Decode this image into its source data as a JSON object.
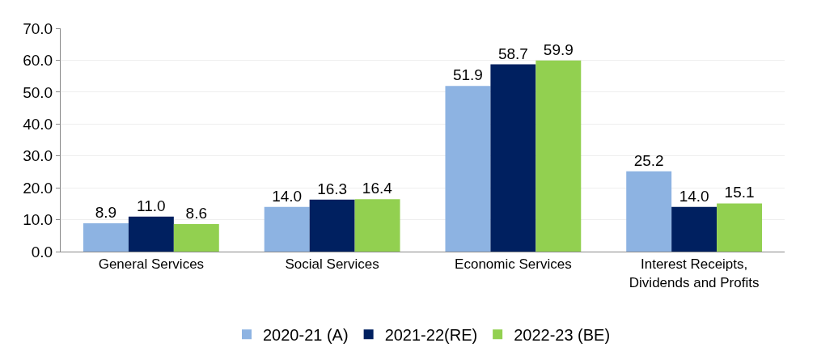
{
  "chart_data": {
    "type": "bar",
    "categories": [
      "General Services",
      "Social Services",
      "Economic Services",
      "Interest Receipts, Dividends and Profits"
    ],
    "series": [
      {
        "name": "2020-21 (A)",
        "color": "#8db3e2",
        "values": [
          8.9,
          14.0,
          51.9,
          25.2
        ],
        "value_labels": [
          "8.9",
          "14.0",
          "51.9",
          "25.2"
        ]
      },
      {
        "name": "2021-22(RE)",
        "color": "#002060",
        "values": [
          11.0,
          16.3,
          58.7,
          14.0
        ],
        "value_labels": [
          "11.0",
          "16.3",
          "58.7",
          "14.0"
        ]
      },
      {
        "name": "2022-23 (BE)",
        "color": "#92d050",
        "values": [
          8.6,
          16.4,
          59.9,
          15.1
        ],
        "value_labels": [
          "8.6",
          "16.4",
          "59.9",
          "15.1"
        ]
      }
    ],
    "ylim": [
      0,
      70
    ],
    "yticks": [
      {
        "value": 0,
        "label": "0.0"
      },
      {
        "value": 10,
        "label": "10.0"
      },
      {
        "value": 20,
        "label": "20.0"
      },
      {
        "value": 30,
        "label": "30.0"
      },
      {
        "value": 40,
        "label": "40.0"
      },
      {
        "value": 50,
        "label": "50.0"
      },
      {
        "value": 60,
        "label": "60.0"
      },
      {
        "value": 70,
        "label": "70.0"
      }
    ],
    "grid": "y",
    "legend": "bottom"
  }
}
